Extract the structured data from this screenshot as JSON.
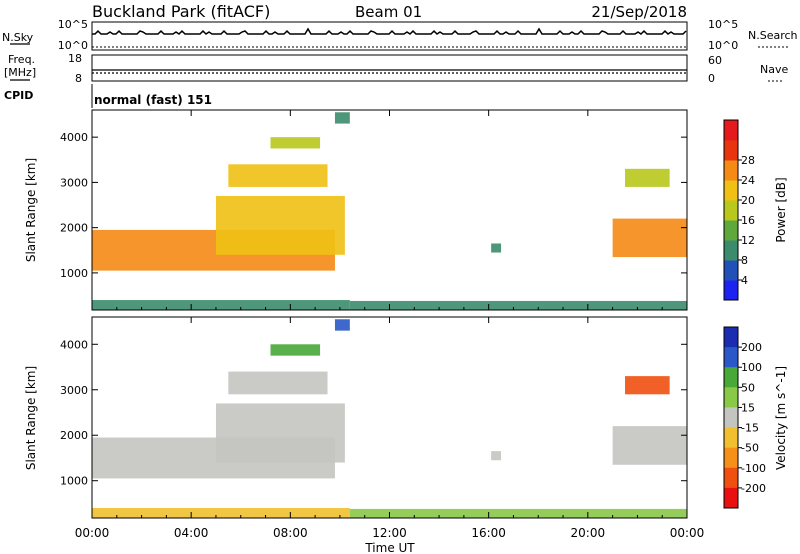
{
  "header": {
    "station": "Buckland Park (fitACF)",
    "beam": "Beam 01",
    "date": "21/Sep/2018"
  },
  "top_panels": {
    "nsky_label": "N.Sky",
    "nsearch_label": "N.Search",
    "nsky_ticks": [
      "10^5",
      "10^0"
    ],
    "nsearch_ticks": [
      "10^5",
      "10^0"
    ],
    "freq_label_1": "Freq.",
    "freq_label_2": "[MHz]",
    "freq_ticks": [
      "18",
      "8"
    ],
    "nave_label": "Nave",
    "nave_ticks": [
      "60",
      "0"
    ],
    "cpid_label": "CPID",
    "cpid_text": "normal (fast) 151"
  },
  "chart_data": [
    {
      "type": "heatmap",
      "title": "",
      "xlabel": "Time UT",
      "ylabel": "Slant Range [km]",
      "x_ticks": [
        "00:00",
        "04:00",
        "08:00",
        "12:00",
        "16:00",
        "20:00",
        "00:00"
      ],
      "y_ticks": [
        "1000",
        "2000",
        "3000",
        "4000"
      ],
      "ylim": [
        180,
        4600
      ],
      "colorbar_label": "Power [dB]",
      "colorbar_ticks": [
        "4",
        "8",
        "12",
        "16",
        "20",
        "24",
        "28"
      ],
      "colors": [
        "#1e22f0",
        "#2050b8",
        "#3b8c6c",
        "#5fa83c",
        "#b8c81c",
        "#f0c014",
        "#f58a14",
        "#e8350f",
        "#e41a1c"
      ],
      "regions": [
        {
          "t0": 0.0,
          "t1": 10.4,
          "r0": 180,
          "r1": 400,
          "value": 12,
          "desc": "ground scatter band"
        },
        {
          "t0": 10.4,
          "t1": 24.0,
          "r0": 180,
          "r1": 380,
          "value": 10
        },
        {
          "t0": 0.0,
          "t1": 9.8,
          "r0": 1050,
          "r1": 1950,
          "value": 27
        },
        {
          "t0": 5.0,
          "t1": 10.2,
          "r0": 1400,
          "r1": 2700,
          "value": 24
        },
        {
          "t0": 5.5,
          "t1": 9.5,
          "r0": 2900,
          "r1": 3400,
          "value": 22
        },
        {
          "t0": 7.2,
          "t1": 9.2,
          "r0": 3750,
          "r1": 4000,
          "value": 20
        },
        {
          "t0": 9.8,
          "t1": 10.4,
          "r0": 4300,
          "r1": 4550,
          "value": 10
        },
        {
          "t0": 21.0,
          "t1": 24.0,
          "r0": 1350,
          "r1": 2200,
          "value": 27
        },
        {
          "t0": 21.5,
          "t1": 23.3,
          "r0": 2900,
          "r1": 3300,
          "value": 20
        },
        {
          "t0": 16.1,
          "t1": 16.5,
          "r0": 1450,
          "r1": 1650,
          "value": 11
        }
      ]
    },
    {
      "type": "heatmap",
      "title": "",
      "xlabel": "Time UT",
      "ylabel": "Slant Range [km]",
      "x_ticks": [
        "00:00",
        "04:00",
        "08:00",
        "12:00",
        "16:00",
        "20:00",
        "00:00"
      ],
      "y_ticks": [
        "1000",
        "2000",
        "3000",
        "4000"
      ],
      "ylim": [
        180,
        4600
      ],
      "colorbar_label": "Velocity [m s^-1]",
      "colorbar_ticks": [
        "200",
        "100",
        "50",
        "15",
        "-15",
        "-50",
        "-100",
        "-200"
      ],
      "colors": [
        "#1a2cb0",
        "#2a58c8",
        "#48a838",
        "#8ac848",
        "#c4c4c0",
        "#f0c030",
        "#f59018",
        "#ef5010",
        "#e81010"
      ],
      "regions": [
        {
          "t0": 0.0,
          "t1": 10.4,
          "r0": 180,
          "r1": 400,
          "value": -30
        },
        {
          "t0": 10.4,
          "t1": 24.0,
          "r0": 180,
          "r1": 380,
          "value": 20
        },
        {
          "t0": 0.0,
          "t1": 9.8,
          "r0": 1050,
          "r1": 1950,
          "value": 0
        },
        {
          "t0": 5.0,
          "t1": 10.2,
          "r0": 1400,
          "r1": 2700,
          "value": 0
        },
        {
          "t0": 5.5,
          "t1": 9.5,
          "r0": 2900,
          "r1": 3400,
          "value": 0
        },
        {
          "t0": 7.2,
          "t1": 9.2,
          "r0": 3750,
          "r1": 4000,
          "value": 60
        },
        {
          "t0": 9.8,
          "t1": 10.4,
          "r0": 4300,
          "r1": 4550,
          "value": 180
        },
        {
          "t0": 21.0,
          "t1": 24.0,
          "r0": 1350,
          "r1": 2200,
          "value": 0
        },
        {
          "t0": 21.5,
          "t1": 23.3,
          "r0": 2900,
          "r1": 3300,
          "value": -200
        },
        {
          "t0": 16.1,
          "t1": 16.5,
          "r0": 1450,
          "r1": 1650,
          "value": 0
        }
      ]
    }
  ]
}
